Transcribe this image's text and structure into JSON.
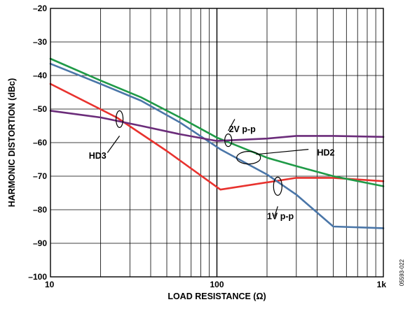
{
  "chart_data": {
    "type": "line",
    "xlabel": "LOAD RESISTANCE (Ω)",
    "ylabel": "HARMONIC DISTORTION (dBc)",
    "x_scale": "log",
    "xlim": [
      10,
      1000
    ],
    "ylim": [
      -100,
      -20
    ],
    "x_ticks": [
      10,
      20,
      30,
      40,
      50,
      60,
      70,
      80,
      90,
      100,
      200,
      300,
      400,
      500,
      600,
      700,
      800,
      900,
      1000
    ],
    "x_tick_labels": [
      {
        "value": 10,
        "label": "10"
      },
      {
        "value": 100,
        "label": "100"
      },
      {
        "value": 1000,
        "label": "1k"
      }
    ],
    "y_ticks": [
      -100,
      -90,
      -80,
      -70,
      -60,
      -50,
      -40,
      -30,
      -20
    ],
    "y_tick_labels": [
      "–100",
      "–90",
      "–80",
      "–70",
      "–60",
      "–50",
      "–40",
      "–30",
      "–20"
    ],
    "grid": true,
    "series": [
      {
        "color": "#e8322e",
        "x": [
          10,
          25,
          50,
          105,
          300,
          500,
          1000
        ],
        "y": [
          -42.5,
          -52.5,
          -62.5,
          -74,
          -70.5,
          -70.5,
          -71.5
        ]
      },
      {
        "color": "#4a76a8",
        "x": [
          10,
          20,
          35,
          60,
          105,
          200,
          300,
          500,
          1000
        ],
        "y": [
          -36.5,
          -42.5,
          -47.5,
          -54,
          -62,
          -69.5,
          -75.5,
          -85,
          -85.5
        ]
      },
      {
        "color": "#1f9a47",
        "x": [
          10,
          20,
          35,
          60,
          100,
          200,
          300,
          500,
          1000
        ],
        "y": [
          -35,
          -41.5,
          -46.5,
          -52.5,
          -58.5,
          -64.5,
          -67,
          -70,
          -73
        ]
      },
      {
        "color": "#6b2c7a",
        "x": [
          10,
          20,
          35,
          60,
          100,
          200,
          300,
          500,
          1000
        ],
        "y": [
          -50.5,
          -52.5,
          -55,
          -57.5,
          -59.5,
          -58.8,
          -58,
          -58,
          -58.3
        ]
      }
    ],
    "annotations": [
      {
        "text": "2V p-p",
        "x": 118,
        "y": -56
      },
      {
        "text": "HD2",
        "x": 400,
        "y": -63
      },
      {
        "text": "HD3",
        "x": 17,
        "y": -64
      },
      {
        "text": "1V p-p",
        "x": 200,
        "y": -82
      }
    ],
    "figure_id": "05593-022"
  }
}
